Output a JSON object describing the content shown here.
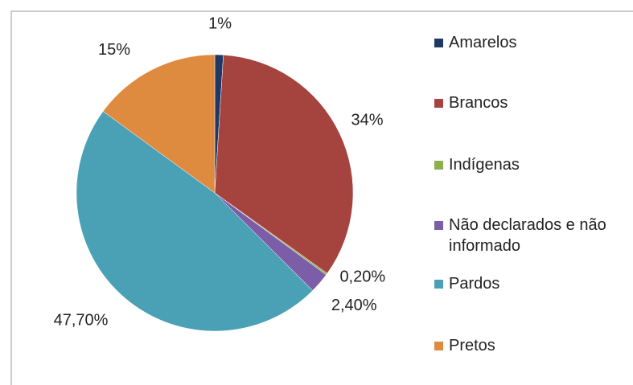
{
  "chart_data": {
    "type": "pie",
    "categories": [
      "Amarelos",
      "Brancos",
      "Indígenas",
      "Não declarados e não informado",
      "Pardos",
      "Pretos"
    ],
    "values": [
      1,
      34,
      0.2,
      2.4,
      47.7,
      15
    ],
    "value_labels": [
      "1%",
      "34%",
      "0,20%",
      "2,40%",
      "47,70%",
      "15%"
    ],
    "colors": [
      "#1f3864",
      "#a5433f",
      "#8db04e",
      "#7b5ea7",
      "#4aa0b5",
      "#de8a3f"
    ],
    "legend": "right"
  }
}
